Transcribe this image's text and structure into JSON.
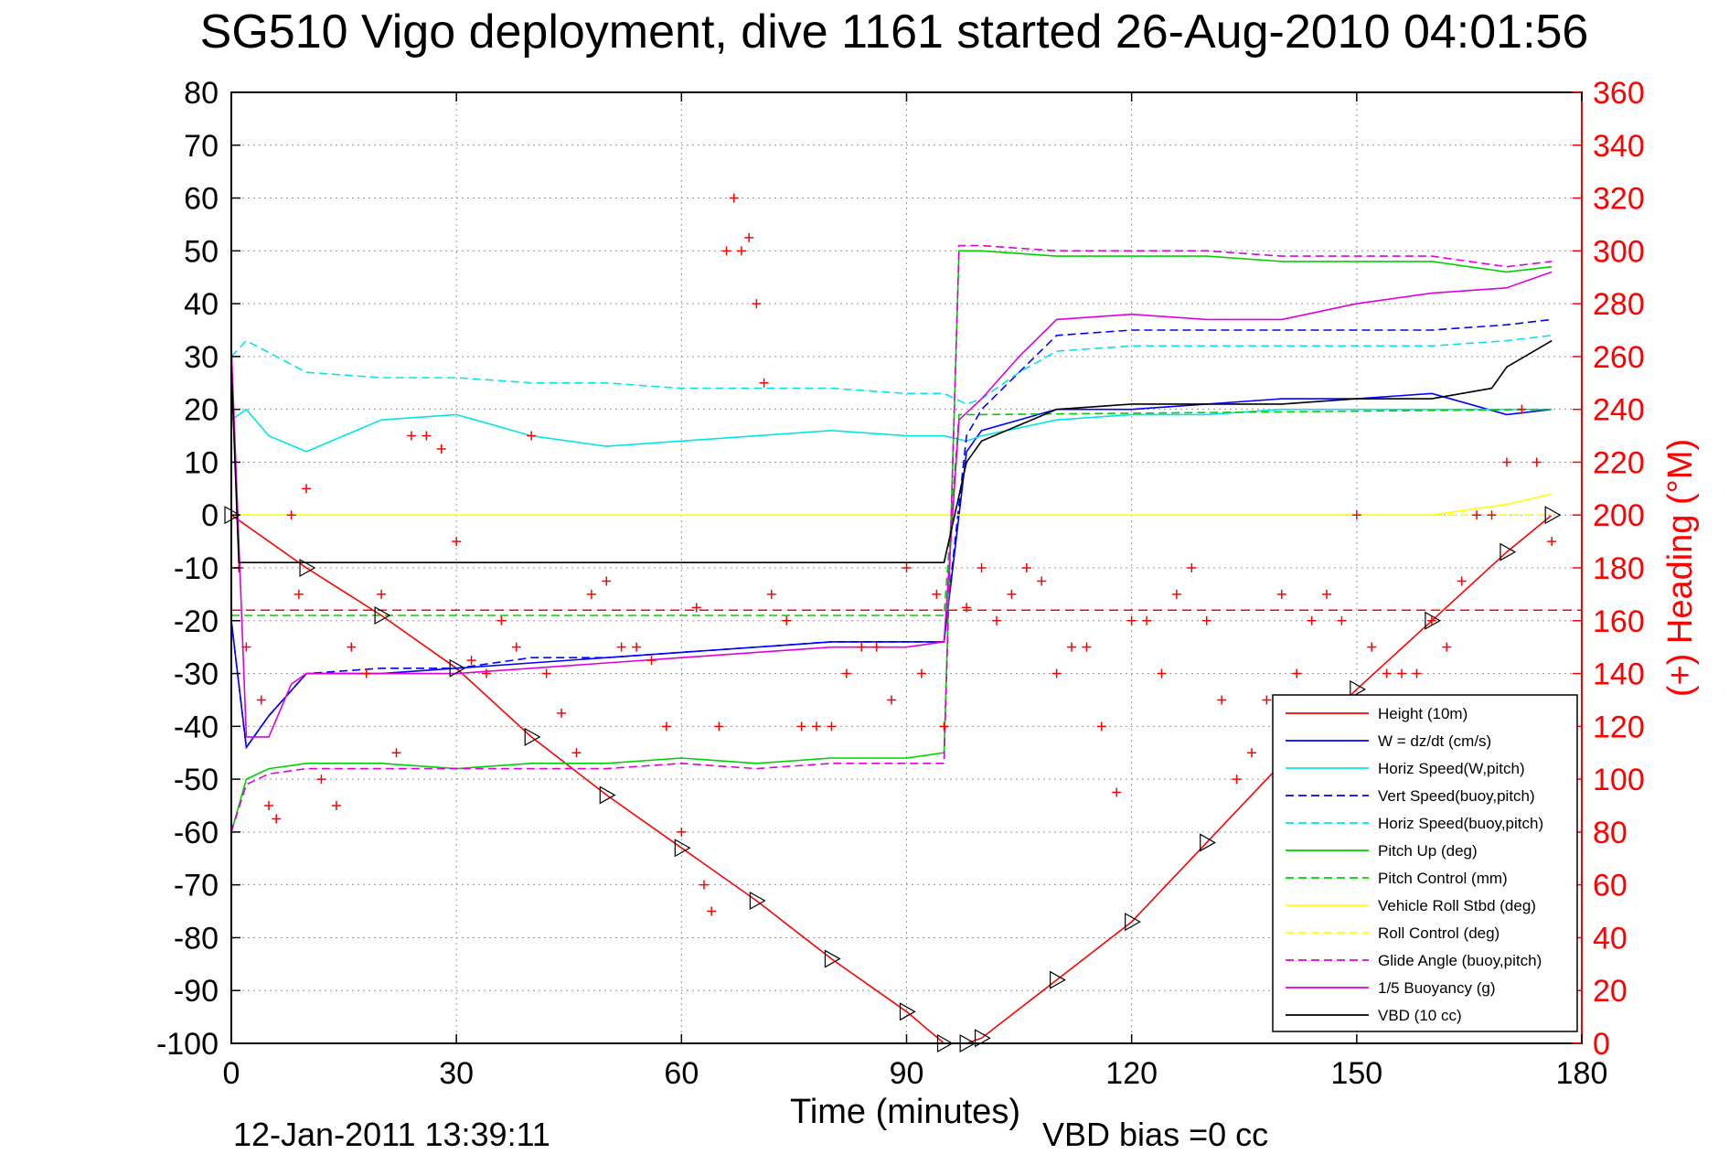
{
  "chart_data": {
    "type": "line",
    "title": "SG510 Vigo deployment, dive 1161 started 26-Aug-2010 04:01:56",
    "xlabel": "Time (minutes)",
    "ylabel_right": "(+) Heading (°M)",
    "timestamp": "12-Jan-2011 13:39:11",
    "footnote": "VBD bias =0 cc",
    "xlim": [
      0,
      180
    ],
    "ylim_left": [
      -100,
      80
    ],
    "ylim_right": [
      0,
      360
    ],
    "x_ticks": [
      "0",
      "30",
      "60",
      "90",
      "120",
      "150",
      "180"
    ],
    "y_ticks_left": [
      "80",
      "70",
      "60",
      "50",
      "40",
      "30",
      "20",
      "10",
      "0",
      "-10",
      "-20",
      "-30",
      "-40",
      "-50",
      "-60",
      "-70",
      "-80",
      "-90",
      "-100"
    ],
    "y_ticks_right": [
      "360",
      "340",
      "320",
      "300",
      "280",
      "260",
      "240",
      "220",
      "200",
      "180",
      "160",
      "140",
      "120",
      "100",
      "80",
      "60",
      "40",
      "20",
      "0"
    ],
    "grid": true,
    "legend_position": "bottom-right",
    "series": [
      {
        "name": "Height (10m)",
        "color": "#ff0000",
        "style": "solid",
        "x": [
          0,
          10,
          20,
          30,
          40,
          50,
          60,
          70,
          80,
          90,
          95,
          98,
          100,
          110,
          120,
          130,
          140,
          150,
          160,
          170,
          176
        ],
        "y": [
          0,
          -10,
          -19,
          -29,
          -42,
          -53,
          -63,
          -73,
          -84,
          -94,
          -100,
          -100,
          -99,
          -88,
          -77,
          -62,
          -47,
          -33,
          -20,
          -7,
          0
        ]
      },
      {
        "name": "W = dz/dt (cm/s)",
        "color": "#0000ff",
        "style": "solid",
        "x": [
          0,
          2,
          5,
          10,
          20,
          30,
          40,
          50,
          60,
          70,
          80,
          90,
          95,
          98,
          100,
          110,
          120,
          130,
          140,
          150,
          160,
          170,
          176
        ],
        "y": [
          -20,
          -44,
          -38,
          -30,
          -30,
          -29,
          -28,
          -27,
          -26,
          -25,
          -24,
          -24,
          -24,
          12,
          16,
          20,
          20,
          21,
          22,
          22,
          23,
          19,
          20
        ]
      },
      {
        "name": "Horiz Speed(W,pitch)",
        "color": "#00e5e5",
        "style": "solid",
        "x": [
          0,
          2,
          5,
          10,
          20,
          30,
          40,
          50,
          60,
          70,
          80,
          90,
          95,
          98,
          100,
          110,
          120,
          130,
          140,
          150,
          160,
          170,
          176
        ],
        "y": [
          18,
          20,
          15,
          12,
          18,
          19,
          15,
          13,
          14,
          15,
          16,
          15,
          15,
          14,
          15,
          18,
          19,
          19,
          20,
          20,
          20,
          20,
          20
        ]
      },
      {
        "name": "Vert Speed(buoy,pitch)",
        "color": "#0000ff",
        "style": "dashed",
        "x": [
          0,
          2,
          5,
          10,
          20,
          30,
          40,
          50,
          60,
          70,
          80,
          90,
          95,
          98,
          100,
          105,
          110,
          120,
          130,
          140,
          150,
          160,
          170,
          176
        ],
        "y": [
          -20,
          -44,
          -38,
          -30,
          -29,
          -29,
          -27,
          -27,
          -26,
          -25,
          -24,
          -24,
          -24,
          15,
          20,
          27,
          34,
          35,
          35,
          35,
          35,
          35,
          36,
          37
        ]
      },
      {
        "name": "Horiz Speed(buoy,pitch)",
        "color": "#00e5e5",
        "style": "dashed",
        "x": [
          0,
          2,
          10,
          20,
          30,
          40,
          50,
          60,
          70,
          80,
          90,
          95,
          98,
          100,
          105,
          110,
          120,
          130,
          140,
          150,
          160,
          170,
          176
        ],
        "y": [
          30,
          33,
          27,
          26,
          26,
          25,
          25,
          24,
          24,
          24,
          23,
          23,
          21,
          22,
          27,
          31,
          32,
          32,
          32,
          32,
          32,
          33,
          34
        ]
      },
      {
        "name": "Pitch Up (deg)",
        "color": "#00d000",
        "style": "solid",
        "x": [
          0,
          2,
          5,
          10,
          20,
          30,
          40,
          50,
          60,
          70,
          80,
          90,
          95,
          97,
          100,
          110,
          120,
          130,
          140,
          150,
          160,
          170,
          176
        ],
        "y": [
          -60,
          -50,
          -48,
          -47,
          -47,
          -48,
          -47,
          -47,
          -46,
          -47,
          -46,
          -46,
          -45,
          50,
          50,
          49,
          49,
          49,
          48,
          48,
          48,
          46,
          47
        ]
      },
      {
        "name": "Pitch Control (mm)",
        "color": "#00d000",
        "style": "dashed",
        "x": [
          0,
          2,
          95,
          97,
          100,
          176
        ],
        "y": [
          -19,
          -19,
          -19,
          19,
          19,
          20
        ]
      },
      {
        "name": "Vehicle Roll Stbd (deg)",
        "color": "#ffff00",
        "style": "solid",
        "x": [
          0,
          10,
          20,
          30,
          40,
          50,
          60,
          70,
          80,
          90,
          95,
          100,
          110,
          120,
          130,
          140,
          150,
          160,
          170,
          176
        ],
        "y": [
          0,
          0,
          0,
          0,
          0,
          0,
          0,
          0,
          0,
          0,
          0,
          0,
          0,
          0,
          0,
          0,
          0,
          0,
          2,
          4
        ]
      },
      {
        "name": "Roll Control (deg)",
        "color": "#ffff00",
        "style": "dashed",
        "x": [
          0,
          30,
          60,
          90,
          120,
          150,
          176
        ],
        "y": [
          0,
          0,
          0,
          0,
          0,
          0,
          0
        ]
      },
      {
        "name": "Glide Angle (buoy,pitch)",
        "color": "#dd00dd",
        "style": "dashed",
        "x": [
          0,
          2,
          5,
          10,
          20,
          30,
          40,
          50,
          60,
          70,
          80,
          90,
          95,
          97,
          100,
          110,
          120,
          130,
          140,
          150,
          160,
          170,
          176
        ],
        "y": [
          -60,
          -51,
          -49,
          -48,
          -48,
          -48,
          -48,
          -48,
          -47,
          -48,
          -47,
          -47,
          -47,
          51,
          51,
          50,
          50,
          50,
          49,
          49,
          49,
          47,
          48
        ]
      },
      {
        "name": "1/5 Buoyancy (g)",
        "color": "#dd00dd",
        "style": "solid",
        "x": [
          0,
          2,
          5,
          8,
          10,
          20,
          30,
          40,
          50,
          60,
          70,
          80,
          90,
          95,
          97,
          100,
          105,
          110,
          120,
          130,
          140,
          150,
          160,
          170,
          176
        ],
        "y": [
          32,
          -42,
          -42,
          -32,
          -30,
          -30,
          -30,
          -29,
          -28,
          -27,
          -26,
          -25,
          -25,
          -24,
          18,
          22,
          30,
          37,
          38,
          37,
          37,
          40,
          42,
          43,
          46
        ]
      },
      {
        "name": "VBD (10 cc)",
        "color": "#000000",
        "style": "solid",
        "x": [
          0,
          1,
          10,
          20,
          30,
          40,
          50,
          60,
          70,
          80,
          90,
          95,
          98,
          100,
          105,
          110,
          120,
          130,
          140,
          150,
          160,
          168,
          170,
          176
        ],
        "y": [
          28,
          -9,
          -9,
          -9,
          -9,
          -9,
          -9,
          -9,
          -9,
          -9,
          -9,
          -9,
          10,
          14,
          17,
          20,
          21,
          21,
          21,
          22,
          22,
          24,
          28,
          33
        ]
      }
    ],
    "heading_points": {
      "name": "Heading",
      "marker": "+",
      "color": "#ff0000",
      "axis": "right",
      "x": [
        1,
        2,
        4,
        5,
        6,
        8,
        9,
        10,
        12,
        14,
        16,
        18,
        20,
        22,
        24,
        26,
        28,
        30,
        32,
        34,
        36,
        38,
        40,
        42,
        44,
        46,
        48,
        50,
        52,
        54,
        56,
        58,
        60,
        62,
        63,
        64,
        65,
        66,
        67,
        68,
        69,
        70,
        71,
        72,
        74,
        76,
        78,
        80,
        82,
        84,
        86,
        88,
        90,
        92,
        94,
        95,
        98,
        100,
        102,
        104,
        106,
        108,
        110,
        112,
        114,
        116,
        118,
        120,
        122,
        124,
        126,
        128,
        130,
        132,
        134,
        136,
        138,
        140,
        142,
        144,
        146,
        148,
        150,
        152,
        154,
        156,
        158,
        160,
        162,
        164,
        166,
        168,
        170,
        172,
        174,
        176
      ],
      "y": [
        180,
        150,
        130,
        90,
        85,
        200,
        170,
        210,
        100,
        90,
        150,
        140,
        170,
        110,
        230,
        230,
        225,
        190,
        145,
        140,
        160,
        150,
        230,
        140,
        125,
        110,
        170,
        175,
        150,
        150,
        145,
        120,
        80,
        165,
        60,
        50,
        120,
        300,
        320,
        300,
        305,
        280,
        250,
        170,
        160,
        120,
        120,
        120,
        140,
        150,
        150,
        130,
        180,
        140,
        170,
        120,
        165,
        180,
        160,
        170,
        180,
        175,
        140,
        150,
        150,
        120,
        95,
        160,
        160,
        140,
        170,
        180,
        160,
        130,
        100,
        110,
        130,
        170,
        140,
        160,
        170,
        160,
        200,
        150,
        140,
        140,
        140,
        160,
        150,
        175,
        200,
        200,
        220,
        240,
        220,
        190
      ]
    },
    "vbd_setpoint_line": {
      "color": "#ff0000",
      "style": "dashed",
      "y": -18
    }
  }
}
